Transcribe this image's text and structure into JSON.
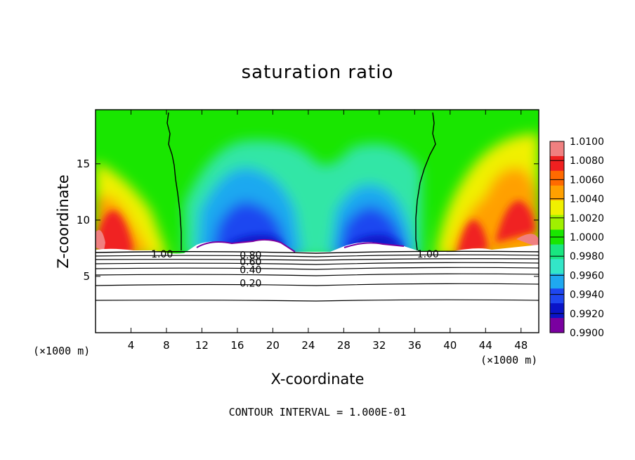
{
  "chart_data": {
    "type": "heatmap",
    "title": "saturation ratio",
    "xlabel": "X-coordinate",
    "ylabel": "Z-coordinate",
    "x_unit": "(×1000 m)",
    "y_unit": "(×1000 m)",
    "xlim": [
      0,
      50
    ],
    "ylim": [
      0,
      19.8
    ],
    "x_ticks": [
      4,
      8,
      12,
      16,
      20,
      24,
      28,
      32,
      36,
      40,
      44,
      48
    ],
    "y_ticks": [
      5,
      10,
      15
    ],
    "colorbar": {
      "range": [
        0.99,
        1.01
      ],
      "labels": [
        "1.0100",
        "1.0080",
        "1.0060",
        "1.0040",
        "1.0020",
        "1.0000",
        "0.9980",
        "0.9960",
        "0.9940",
        "0.9920",
        "0.9900"
      ]
    },
    "contours": [
      {
        "label": "1.00",
        "at": [
          7.5,
          7.0
        ]
      },
      {
        "label": "1.00",
        "at": [
          37.5,
          7.0
        ]
      },
      {
        "label": "0.80",
        "at": [
          17.5,
          6.9
        ]
      },
      {
        "label": "0.60",
        "at": [
          17.5,
          6.3
        ]
      },
      {
        "label": "0.40",
        "at": [
          17.5,
          5.6
        ]
      },
      {
        "label": "0.20",
        "at": [
          17.5,
          4.4
        ]
      }
    ],
    "footnote": "CONTOUR INTERVAL = 1.000E-01"
  }
}
